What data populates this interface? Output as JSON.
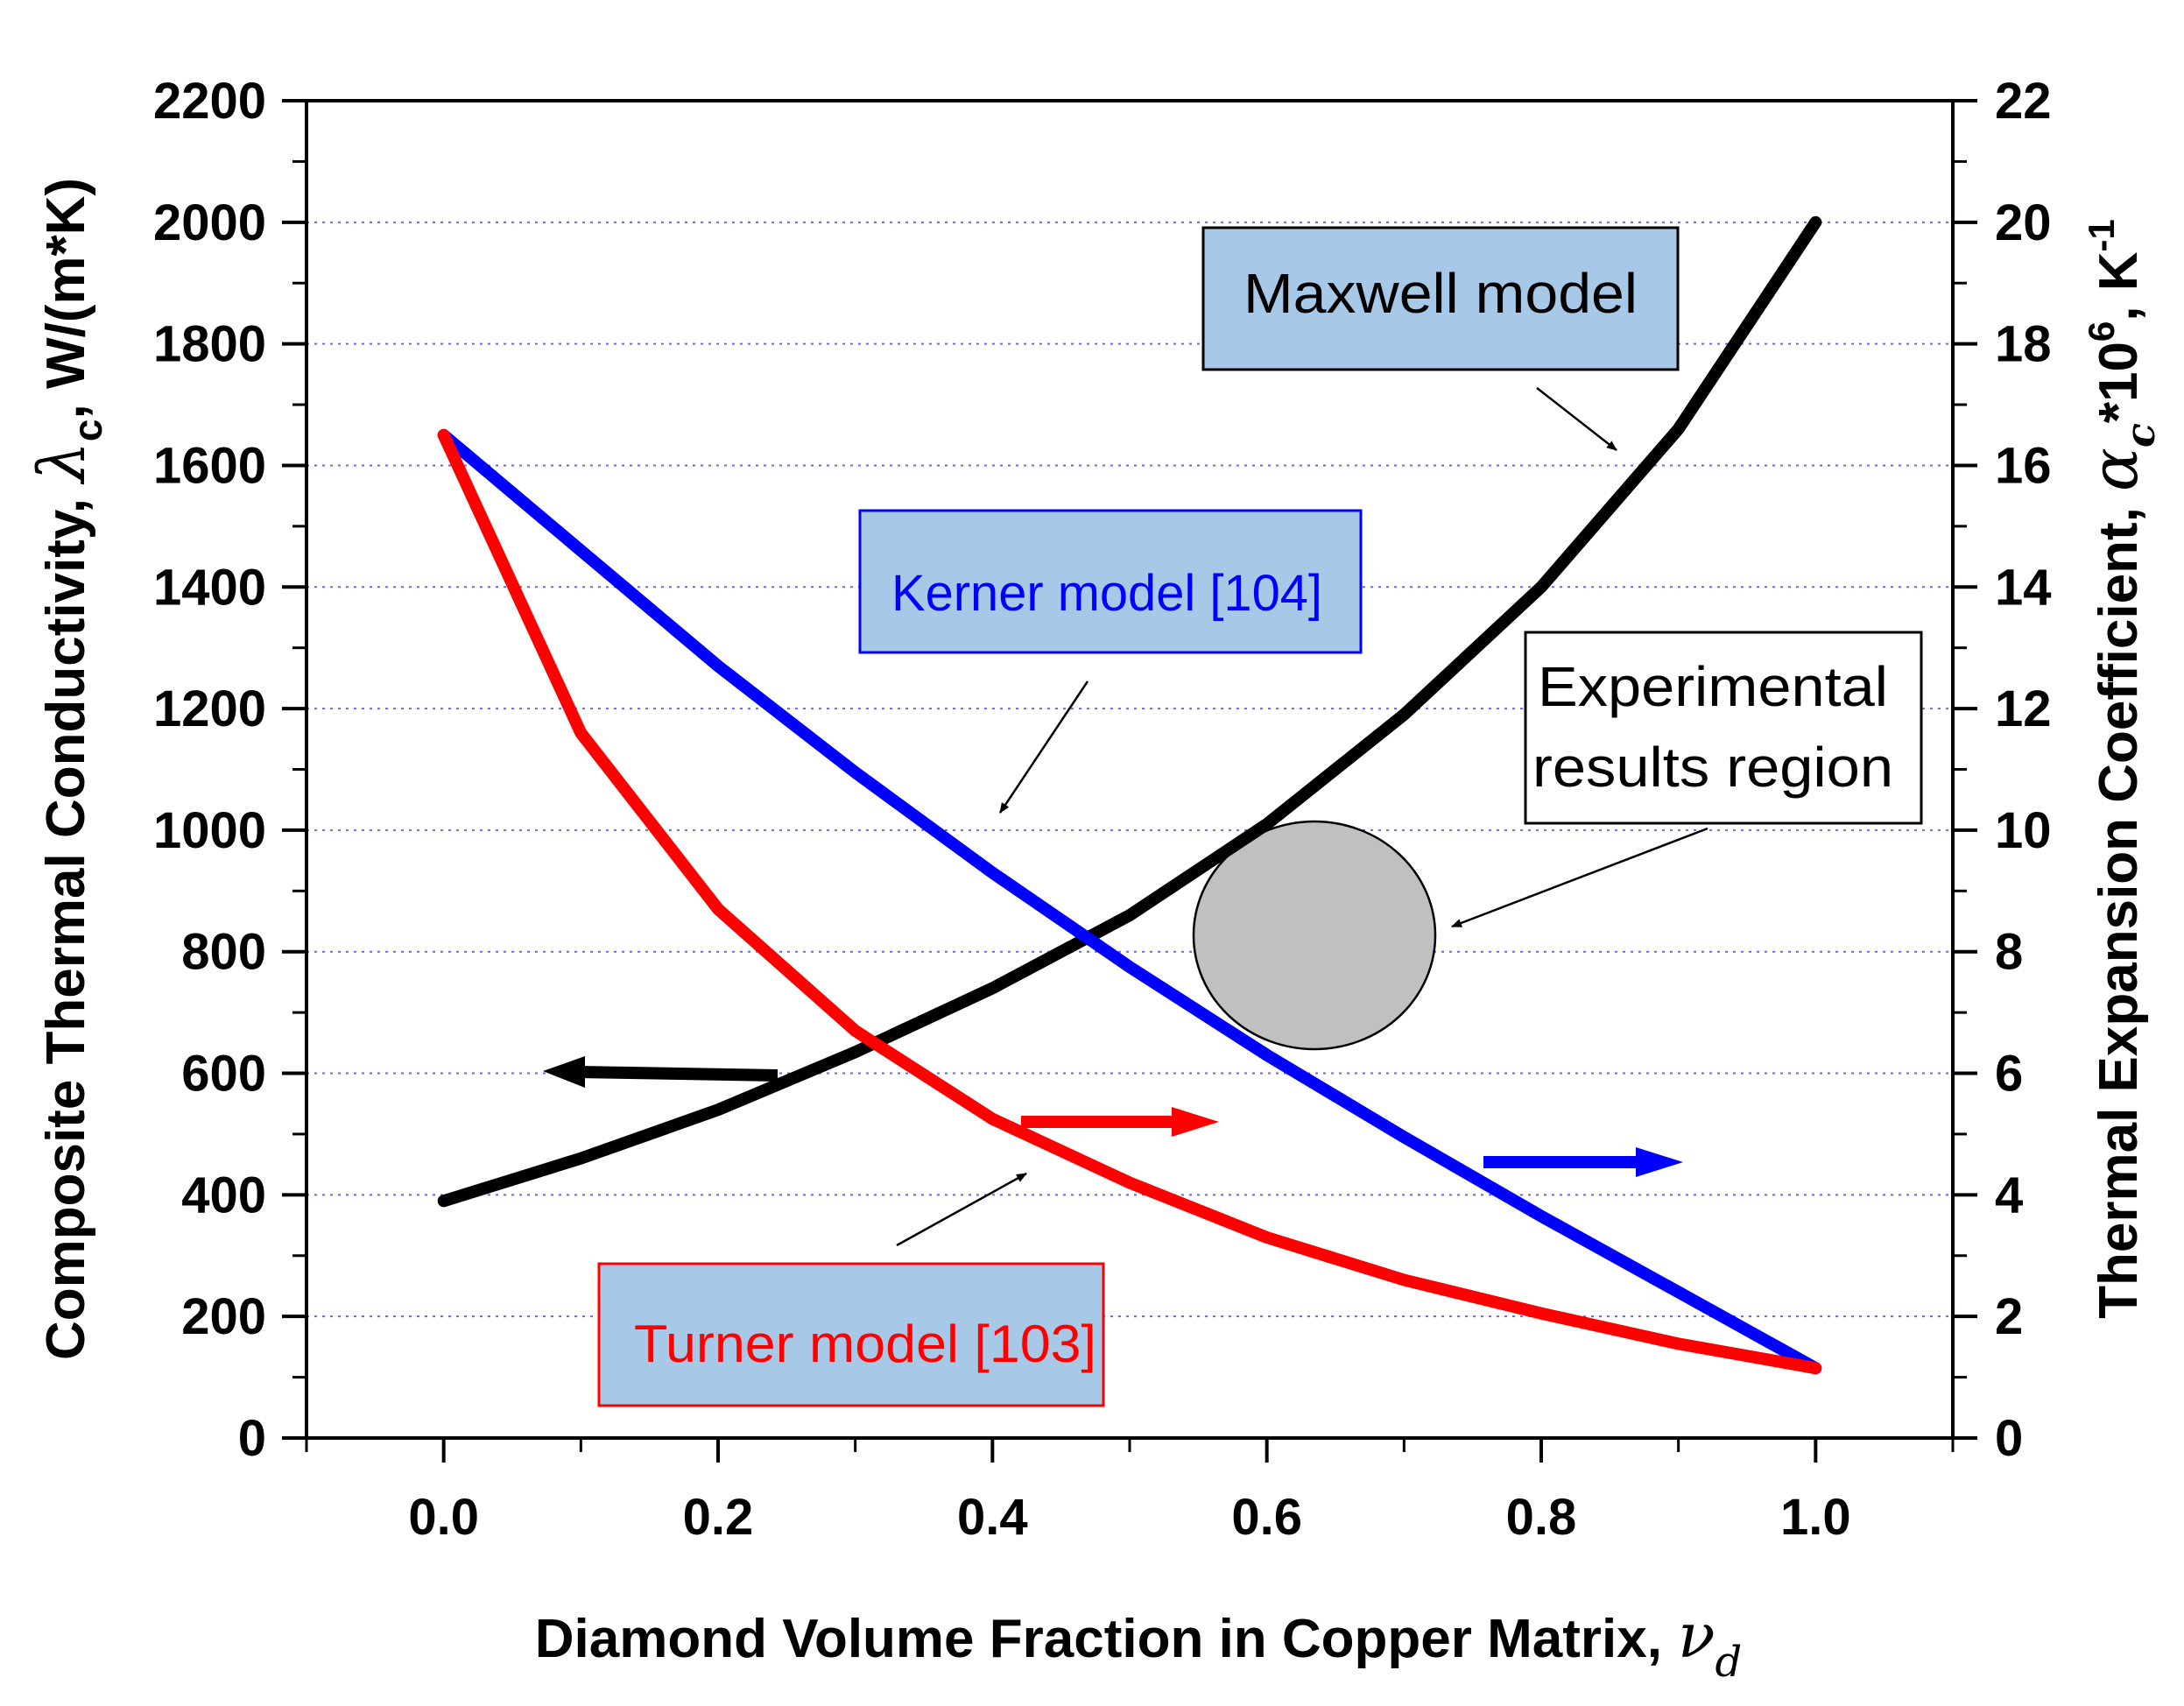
{
  "chart_data": {
    "type": "line",
    "title": "",
    "xlabel": "Diamond Volume Fraction in Copper Matrix,",
    "xlabel_symbol": "ν",
    "xlabel_subscript": "d",
    "ylabel_left": "Composite Thermal Conductivity,",
    "ylabel_left_symbol": "λ",
    "ylabel_left_subscript": "c",
    "ylabel_left_unit": ", W/(m*K)",
    "ylabel_right": "Thermal Expansion Coefficient,",
    "ylabel_right_symbol": "α",
    "ylabel_right_subscript": "c",
    "ylabel_right_unit_pre": "*10",
    "ylabel_right_unit_sup": "6",
    "ylabel_right_unit_post": ", K",
    "ylabel_right_unit_sup2": "-1",
    "xlim": [
      -0.1,
      1.1
    ],
    "ylim_left": [
      0,
      2200
    ],
    "ylim_right": [
      0,
      22
    ],
    "x_ticks": [
      "0.0",
      "0.2",
      "0.4",
      "0.6",
      "0.8",
      "1.0"
    ],
    "y_left_ticks": [
      "0",
      "200",
      "400",
      "600",
      "800",
      "1000",
      "1200",
      "1400",
      "1600",
      "1800",
      "2000",
      "2200"
    ],
    "y_right_ticks": [
      "0",
      "2",
      "4",
      "6",
      "8",
      "10",
      "12",
      "14",
      "16",
      "18",
      "20",
      "22"
    ],
    "grid": "horizontal dotted",
    "series": [
      {
        "name": "Maxwell model",
        "axis": "left",
        "color": "#000000",
        "x": [
          0.0,
          0.1,
          0.2,
          0.3,
          0.4,
          0.5,
          0.6,
          0.7,
          0.8,
          0.9,
          1.0
        ],
        "values": [
          390,
          460,
          540,
          635,
          740,
          860,
          1010,
          1190,
          1400,
          1660,
          2000
        ]
      },
      {
        "name": "Kerner model [104]",
        "axis": "right",
        "color": "#0000ff",
        "x": [
          0.0,
          0.1,
          0.2,
          0.3,
          0.4,
          0.5,
          0.6,
          0.7,
          0.8,
          0.9,
          1.0
        ],
        "values": [
          16.5,
          14.6,
          12.7,
          10.95,
          9.3,
          7.75,
          6.3,
          4.95,
          3.65,
          2.4,
          1.15
        ]
      },
      {
        "name": "Turner model [103]",
        "axis": "right",
        "color": "#ff0000",
        "x": [
          0.0,
          0.1,
          0.2,
          0.3,
          0.4,
          0.5,
          0.6,
          0.7,
          0.8,
          0.9,
          1.0
        ],
        "values": [
          16.5,
          11.6,
          8.7,
          6.7,
          5.25,
          4.2,
          3.3,
          2.6,
          2.05,
          1.55,
          1.15
        ]
      }
    ],
    "annotations": [
      {
        "text": "Maxwell model",
        "color": "#000000",
        "box_fill": "#a8c8e8",
        "box_border": "#000000"
      },
      {
        "text": "Kerner model [104]",
        "color": "#0000ff",
        "box_fill": "#a8c8e8",
        "box_border": "#0000ff"
      },
      {
        "text": "Turner model [103]",
        "color": "#ff0000",
        "box_fill": "#a8c8e8",
        "box_border": "#ff0000"
      },
      {
        "text_line1": "Experimental",
        "text_line2": "results region",
        "color": "#000000",
        "box_fill": "#ffffff",
        "box_border": "#000000"
      }
    ],
    "experimental_region": {
      "x": 0.64,
      "y_left": 830,
      "fill": "#c0c0c0"
    }
  }
}
